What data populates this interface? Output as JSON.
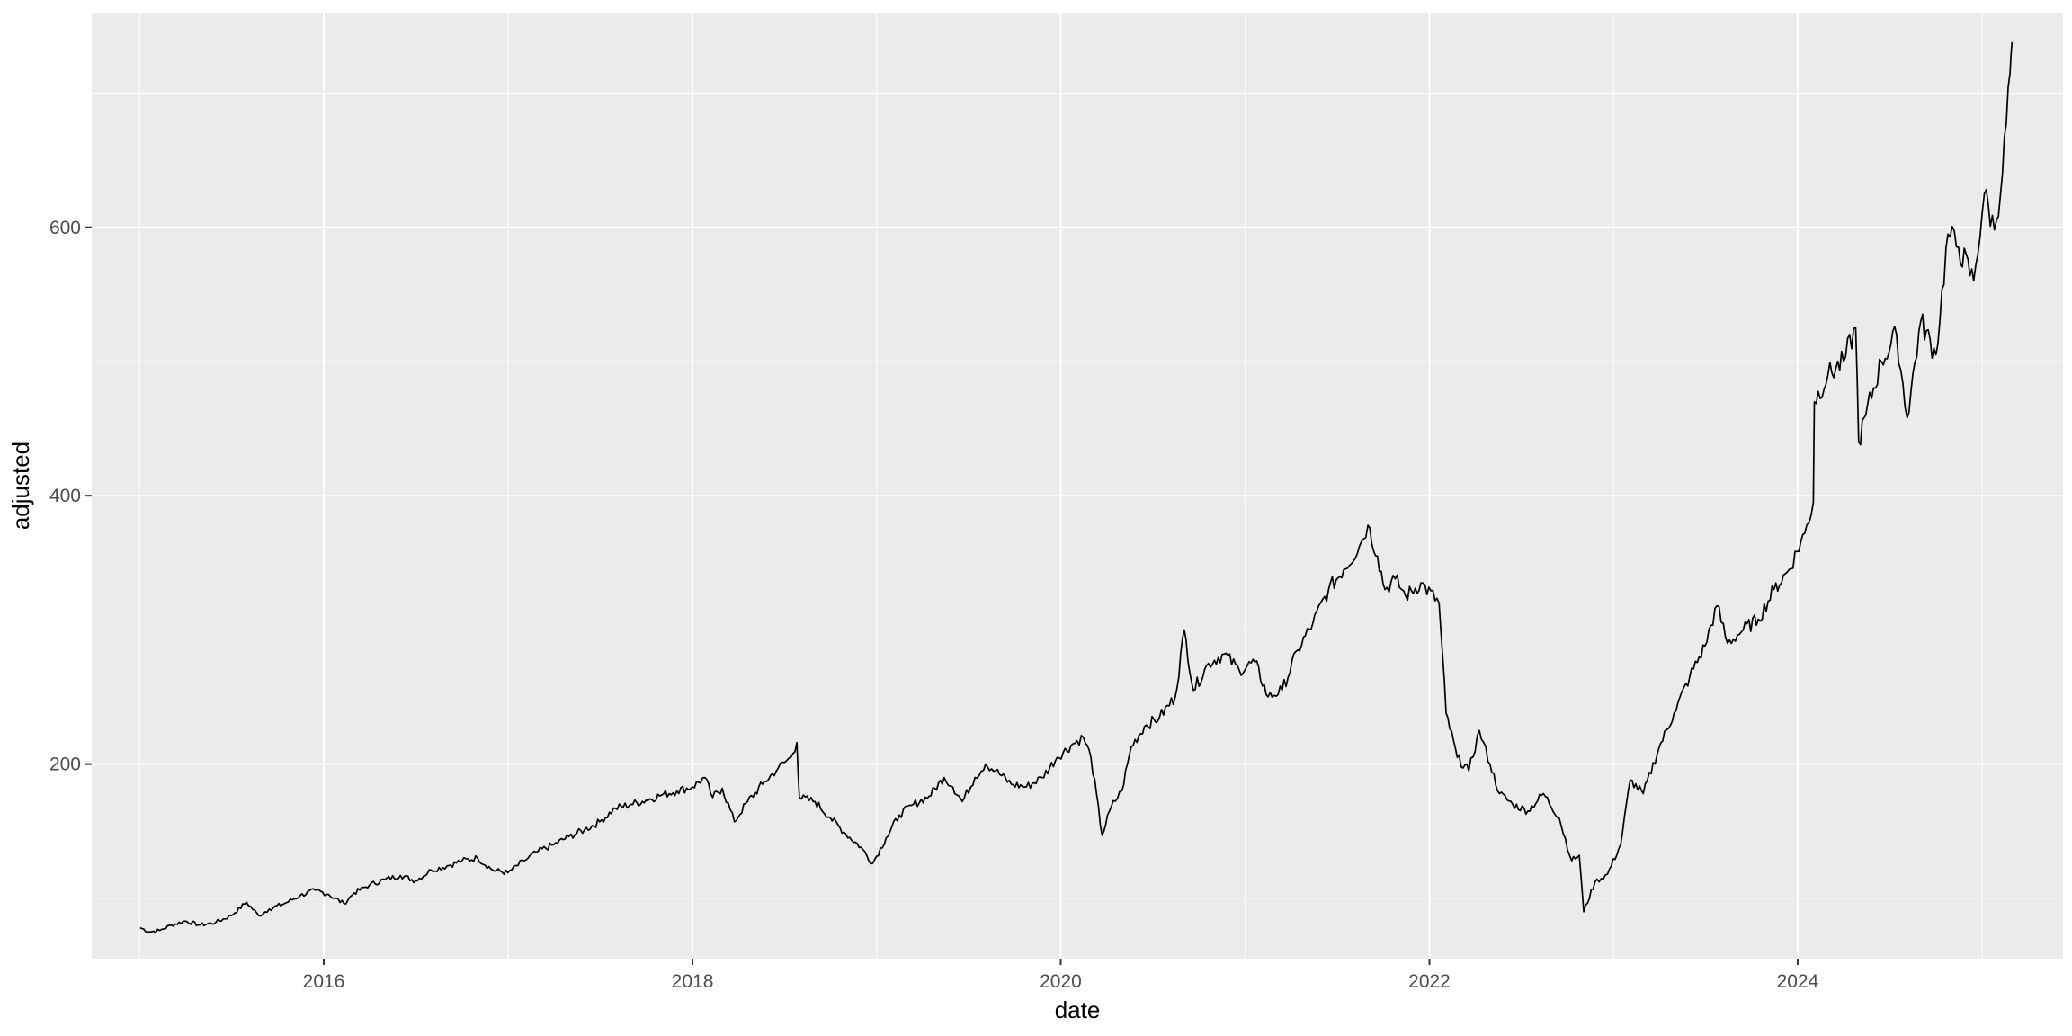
{
  "chart_data": {
    "type": "line",
    "xlabel": "date",
    "ylabel": "adjusted",
    "xlim": [
      "2014-09-28",
      "2025-06-10"
    ],
    "ylim": [
      55,
      760
    ],
    "x_ticks": [
      "2016-01-01",
      "2018-01-01",
      "2020-01-01",
      "2022-01-01",
      "2024-01-01"
    ],
    "x_tick_labels": [
      "2016",
      "2018",
      "2020",
      "2022",
      "2024"
    ],
    "y_ticks": [
      200,
      400,
      600
    ],
    "y_tick_labels": [
      "200",
      "400",
      "600"
    ],
    "grid": true,
    "legend": "none",
    "colors": {
      "panel": "#EBEBEB",
      "grid": "#FFFFFF",
      "line": "#000000",
      "tick_text": "#4D4D4D"
    },
    "series": [
      {
        "points": [
          [
            "2015-01-02",
            78
          ],
          [
            "2015-01-20",
            75
          ],
          [
            "2015-02-10",
            76
          ],
          [
            "2015-03-05",
            80
          ],
          [
            "2015-04-01",
            83
          ],
          [
            "2015-05-01",
            80
          ],
          [
            "2015-06-01",
            82
          ],
          [
            "2015-07-01",
            87
          ],
          [
            "2015-08-01",
            97
          ],
          [
            "2015-08-25",
            87
          ],
          [
            "2015-09-15",
            92
          ],
          [
            "2015-10-15",
            96
          ],
          [
            "2015-11-15",
            102
          ],
          [
            "2015-12-15",
            106
          ],
          [
            "2016-01-10",
            103
          ],
          [
            "2016-02-10",
            96
          ],
          [
            "2016-03-01",
            104
          ],
          [
            "2016-04-01",
            110
          ],
          [
            "2016-05-01",
            114
          ],
          [
            "2016-06-01",
            117
          ],
          [
            "2016-07-01",
            113
          ],
          [
            "2016-08-01",
            121
          ],
          [
            "2016-09-01",
            124
          ],
          [
            "2016-10-01",
            128
          ],
          [
            "2016-11-01",
            130
          ],
          [
            "2016-12-01",
            121
          ],
          [
            "2016-12-31",
            119
          ],
          [
            "2017-02-01",
            128
          ],
          [
            "2017-03-01",
            135
          ],
          [
            "2017-04-01",
            140
          ],
          [
            "2017-05-01",
            146
          ],
          [
            "2017-06-01",
            151
          ],
          [
            "2017-07-01",
            157
          ],
          [
            "2017-08-01",
            167
          ],
          [
            "2017-09-01",
            170
          ],
          [
            "2017-10-01",
            173
          ],
          [
            "2017-11-01",
            177
          ],
          [
            "2017-12-01",
            180
          ],
          [
            "2018-01-01",
            183
          ],
          [
            "2018-01-25",
            190
          ],
          [
            "2018-02-10",
            175
          ],
          [
            "2018-03-01",
            182
          ],
          [
            "2018-03-25",
            157
          ],
          [
            "2018-04-20",
            172
          ],
          [
            "2018-05-20",
            185
          ],
          [
            "2018-06-20",
            197
          ],
          [
            "2018-07-15",
            205
          ],
          [
            "2018-07-27",
            216
          ],
          [
            "2018-08-01",
            175
          ],
          [
            "2018-09-01",
            172
          ],
          [
            "2018-10-01",
            160
          ],
          [
            "2018-11-01",
            148
          ],
          [
            "2018-12-01",
            138
          ],
          [
            "2018-12-24",
            126
          ],
          [
            "2019-01-20",
            145
          ],
          [
            "2019-02-15",
            162
          ],
          [
            "2019-03-15",
            170
          ],
          [
            "2019-04-15",
            176
          ],
          [
            "2019-05-15",
            190
          ],
          [
            "2019-06-01",
            183
          ],
          [
            "2019-06-20",
            172
          ],
          [
            "2019-07-15",
            190
          ],
          [
            "2019-08-05",
            200
          ],
          [
            "2019-08-25",
            195
          ],
          [
            "2019-09-25",
            185
          ],
          [
            "2019-10-25",
            183
          ],
          [
            "2019-11-25",
            190
          ],
          [
            "2019-12-25",
            205
          ],
          [
            "2020-01-25",
            215
          ],
          [
            "2020-02-15",
            220
          ],
          [
            "2020-03-01",
            205
          ],
          [
            "2020-03-23",
            147
          ],
          [
            "2020-04-10",
            168
          ],
          [
            "2020-05-01",
            180
          ],
          [
            "2020-05-20",
            213
          ],
          [
            "2020-06-15",
            228
          ],
          [
            "2020-07-15",
            235
          ],
          [
            "2020-08-15",
            250
          ],
          [
            "2020-09-02",
            300
          ],
          [
            "2020-09-20",
            255
          ],
          [
            "2020-10-20",
            275
          ],
          [
            "2020-11-20",
            282
          ],
          [
            "2020-12-20",
            270
          ],
          [
            "2021-01-20",
            276
          ],
          [
            "2021-02-15",
            250
          ],
          [
            "2021-03-15",
            255
          ],
          [
            "2021-04-15",
            285
          ],
          [
            "2021-05-15",
            305
          ],
          [
            "2021-06-15",
            330
          ],
          [
            "2021-07-15",
            345
          ],
          [
            "2021-08-15",
            362
          ],
          [
            "2021-09-01",
            378
          ],
          [
            "2021-09-20",
            355
          ],
          [
            "2021-10-05",
            330
          ],
          [
            "2021-10-25",
            338
          ],
          [
            "2021-11-15",
            325
          ],
          [
            "2021-12-15",
            335
          ],
          [
            "2022-01-20",
            320
          ],
          [
            "2022-02-03",
            238
          ],
          [
            "2022-02-25",
            205
          ],
          [
            "2022-03-20",
            195
          ],
          [
            "2022-04-10",
            225
          ],
          [
            "2022-05-01",
            200
          ],
          [
            "2022-05-20",
            178
          ],
          [
            "2022-06-15",
            170
          ],
          [
            "2022-07-15",
            165
          ],
          [
            "2022-08-15",
            178
          ],
          [
            "2022-09-15",
            160
          ],
          [
            "2022-10-10",
            128
          ],
          [
            "2022-10-25",
            132
          ],
          [
            "2022-11-03",
            90
          ],
          [
            "2022-11-25",
            112
          ],
          [
            "2022-12-20",
            118
          ],
          [
            "2023-01-15",
            140
          ],
          [
            "2023-02-03",
            188
          ],
          [
            "2023-03-01",
            178
          ],
          [
            "2023-04-01",
            212
          ],
          [
            "2023-05-01",
            238
          ],
          [
            "2023-06-01",
            265
          ],
          [
            "2023-07-01",
            288
          ],
          [
            "2023-07-25",
            318
          ],
          [
            "2023-08-15",
            290
          ],
          [
            "2023-09-15",
            300
          ],
          [
            "2023-10-15",
            308
          ],
          [
            "2023-11-15",
            330
          ],
          [
            "2023-12-15",
            345
          ],
          [
            "2024-01-15",
            372
          ],
          [
            "2024-02-01",
            395
          ],
          [
            "2024-02-03",
            470
          ],
          [
            "2024-03-01",
            490
          ],
          [
            "2024-04-01",
            500
          ],
          [
            "2024-04-25",
            525
          ],
          [
            "2024-05-01",
            440
          ],
          [
            "2024-05-15",
            460
          ],
          [
            "2024-06-15",
            500
          ],
          [
            "2024-07-15",
            520
          ],
          [
            "2024-08-05",
            458
          ],
          [
            "2024-09-01",
            530
          ],
          [
            "2024-10-01",
            505
          ],
          [
            "2024-10-25",
            595
          ],
          [
            "2024-11-15",
            585
          ],
          [
            "2024-12-15",
            560
          ],
          [
            "2025-01-05",
            625
          ],
          [
            "2025-01-25",
            598
          ],
          [
            "2025-02-10",
            640
          ],
          [
            "2025-02-25",
            715
          ],
          [
            "2025-03-01",
            738
          ]
        ]
      }
    ]
  }
}
